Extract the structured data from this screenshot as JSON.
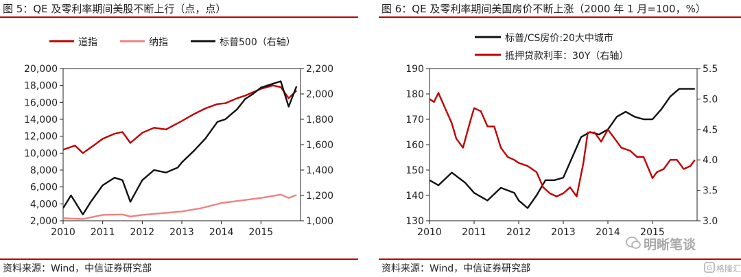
{
  "left": {
    "title": "图 5：QE 及零利率期间美股不断上行（点，点）",
    "source": "资料来源：Wind，中信证券研究部",
    "legend": [
      "道指",
      "纳指",
      "标普500（右轴）"
    ]
  },
  "right": {
    "title": "图 6：QE 及零利率期间美国房价不断上涨（2000 年 1 月=100，%）",
    "source": "资料来源：Wind，中信证券研究部",
    "legend": [
      "标普/CS房价:20大中城市",
      "抵押贷款利率：30Y（右轴）"
    ]
  },
  "watermark": {
    "name": "明晰笔谈",
    "badge": "格隆汇"
  },
  "colors": {
    "dow": "#c00000",
    "nasdaq": "#f08080",
    "sp500": "#111111",
    "hpi": "#111111",
    "mortgage": "#c00000",
    "accent": "#c00000"
  },
  "chart_data": [
    {
      "type": "line",
      "title": "图 5：QE 及零利率期间美股不断上行（点，点）",
      "x_ticks": [
        "2010",
        "2011",
        "2012",
        "2013",
        "2014",
        "2015"
      ],
      "y_ticks": [
        "20,000",
        "18,000",
        "16,000",
        "14,000",
        "12,000",
        "10,000",
        "8,000",
        "6,000",
        "4,000",
        "2,000"
      ],
      "y2_ticks": [
        "2,200",
        "2,000",
        "1,800",
        "1,600",
        "1,400",
        "1,200",
        "1,000"
      ],
      "ylim": [
        2000,
        20000
      ],
      "y2lim": [
        1000,
        2200
      ],
      "xlim": [
        2010.0,
        2016.0
      ],
      "legend_position": "top",
      "series": [
        {
          "name": "道指",
          "axis": "left",
          "x": [
            2010.0,
            2010.3,
            2010.5,
            2010.8,
            2011.0,
            2011.3,
            2011.5,
            2011.7,
            2012.0,
            2012.3,
            2012.6,
            2012.8,
            2013.0,
            2013.3,
            2013.6,
            2013.9,
            2014.1,
            2014.4,
            2014.6,
            2014.8,
            2015.0,
            2015.3,
            2015.5,
            2015.7,
            2015.9
          ],
          "values": [
            10400,
            10900,
            10000,
            11000,
            11700,
            12300,
            12500,
            11200,
            12400,
            13000,
            12800,
            13300,
            13800,
            14600,
            15300,
            15800,
            15900,
            16500,
            16800,
            17200,
            17600,
            18000,
            17800,
            16500,
            17400
          ]
        },
        {
          "name": "纳指",
          "axis": "left",
          "x": [
            2010.0,
            2010.5,
            2011.0,
            2011.5,
            2011.7,
            2012.0,
            2012.5,
            2013.0,
            2013.5,
            2014.0,
            2014.5,
            2015.0,
            2015.5,
            2015.7,
            2015.9
          ],
          "values": [
            2300,
            2200,
            2700,
            2750,
            2500,
            2700,
            2900,
            3100,
            3500,
            4100,
            4400,
            4700,
            5100,
            4700,
            5050
          ]
        },
        {
          "name": "标普500（右轴）",
          "axis": "right",
          "x": [
            2010.0,
            2010.2,
            2010.5,
            2010.7,
            2011.0,
            2011.3,
            2011.5,
            2011.7,
            2012.0,
            2012.3,
            2012.6,
            2012.9,
            2013.0,
            2013.3,
            2013.6,
            2013.9,
            2014.1,
            2014.4,
            2014.6,
            2014.8,
            2015.0,
            2015.3,
            2015.5,
            2015.7,
            2015.9
          ],
          "values": [
            1100,
            1200,
            1050,
            1150,
            1280,
            1340,
            1320,
            1150,
            1320,
            1400,
            1380,
            1420,
            1460,
            1550,
            1650,
            1780,
            1800,
            1880,
            1960,
            2000,
            2050,
            2080,
            2100,
            1900,
            2060
          ]
        }
      ]
    },
    {
      "type": "line",
      "title": "图 6：QE 及零利率期间美国房价不断上涨（2000 年 1 月=100，%）",
      "x_ticks": [
        "2010",
        "2011",
        "2012",
        "2013",
        "2014",
        "2015"
      ],
      "y_ticks": [
        "190",
        "180",
        "170",
        "160",
        "150",
        "140",
        "130"
      ],
      "y2_ticks": [
        "5.5",
        "5.0",
        "4.5",
        "4.0",
        "3.5",
        "3.0"
      ],
      "ylim": [
        130,
        190
      ],
      "y2lim": [
        3.0,
        5.5
      ],
      "xlim": [
        2010.0,
        2016.0
      ],
      "legend_position": "top",
      "series": [
        {
          "name": "标普/CS房价:20大中城市",
          "axis": "left",
          "x": [
            2010.0,
            2010.2,
            2010.5,
            2010.8,
            2011.0,
            2011.3,
            2011.6,
            2011.9,
            2012.0,
            2012.2,
            2012.4,
            2012.6,
            2012.8,
            2013.0,
            2013.2,
            2013.4,
            2013.6,
            2013.8,
            2014.0,
            2014.2,
            2014.4,
            2014.6,
            2014.8,
            2015.0,
            2015.2,
            2015.4,
            2015.6,
            2015.8,
            2015.95
          ],
          "values": [
            146,
            144,
            149,
            145,
            141,
            138,
            143,
            141,
            138,
            135,
            140,
            146,
            146,
            147,
            155,
            163,
            165,
            164,
            166,
            171,
            173,
            171,
            170,
            170,
            174,
            179,
            182,
            182,
            182
          ]
        },
        {
          "name": "抵押贷款利率：30Y（右轴）",
          "axis": "right",
          "x": [
            2010.0,
            2010.1,
            2010.2,
            2010.35,
            2010.5,
            2010.6,
            2010.75,
            2010.9,
            2011.0,
            2011.15,
            2011.3,
            2011.45,
            2011.6,
            2011.75,
            2011.9,
            2012.0,
            2012.2,
            2012.4,
            2012.55,
            2012.7,
            2012.85,
            2013.0,
            2013.15,
            2013.3,
            2013.45,
            2013.55,
            2013.7,
            2013.85,
            2014.0,
            2014.15,
            2014.3,
            2014.5,
            2014.65,
            2014.8,
            2015.0,
            2015.1,
            2015.25,
            2015.4,
            2015.55,
            2015.7,
            2015.85,
            2015.95
          ],
          "values": [
            5.0,
            4.95,
            5.1,
            4.85,
            4.6,
            4.35,
            4.2,
            4.6,
            4.85,
            4.8,
            4.55,
            4.55,
            4.2,
            4.05,
            4.0,
            3.95,
            3.9,
            3.8,
            3.55,
            3.45,
            3.4,
            3.45,
            3.55,
            3.4,
            3.95,
            4.45,
            4.45,
            4.3,
            4.5,
            4.35,
            4.2,
            4.15,
            4.05,
            4.05,
            3.7,
            3.8,
            3.85,
            4.0,
            4.0,
            3.85,
            3.9,
            4.0
          ]
        }
      ]
    }
  ]
}
